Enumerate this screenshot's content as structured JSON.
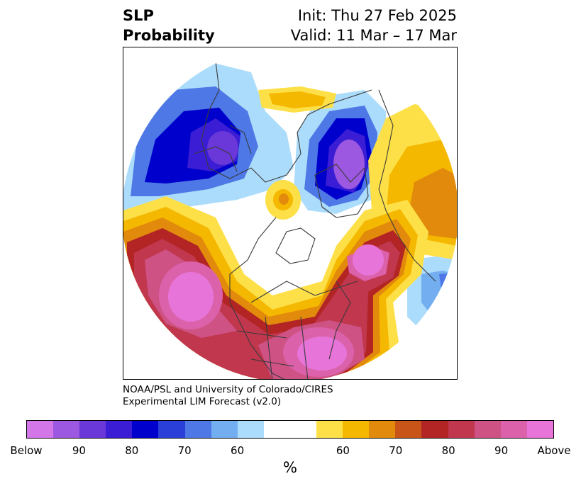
{
  "header": {
    "title_line1": "SLP",
    "title_line2": "Probability",
    "init_text": "Init: Thu 27 Feb 2025",
    "valid_text": "Valid: 11 Mar – 17 Mar"
  },
  "credit": {
    "line1": "NOAA/PSL and University of Colorado/CIRES",
    "line2": "Experimental LIM Forecast (v2.0)"
  },
  "colorbar": {
    "colors_below": [
      "#d376e8",
      "#9c58e0",
      "#6a38d8",
      "#3a1dd4",
      "#0000cc",
      "#2a3fd8",
      "#4e78e6",
      "#72aef0",
      "#acdcfb"
    ],
    "color_neutral": "#ffffff",
    "colors_above": [
      "#fde047",
      "#f5b800",
      "#e28a0c",
      "#c8541a",
      "#b32424",
      "#c0374e",
      "#cf5285",
      "#db62aa",
      "#e774d9"
    ],
    "ticks": [
      "Below",
      "90",
      "80",
      "70",
      "60",
      "60",
      "70",
      "80",
      "90",
      "Above"
    ],
    "unit_label": "%"
  }
}
